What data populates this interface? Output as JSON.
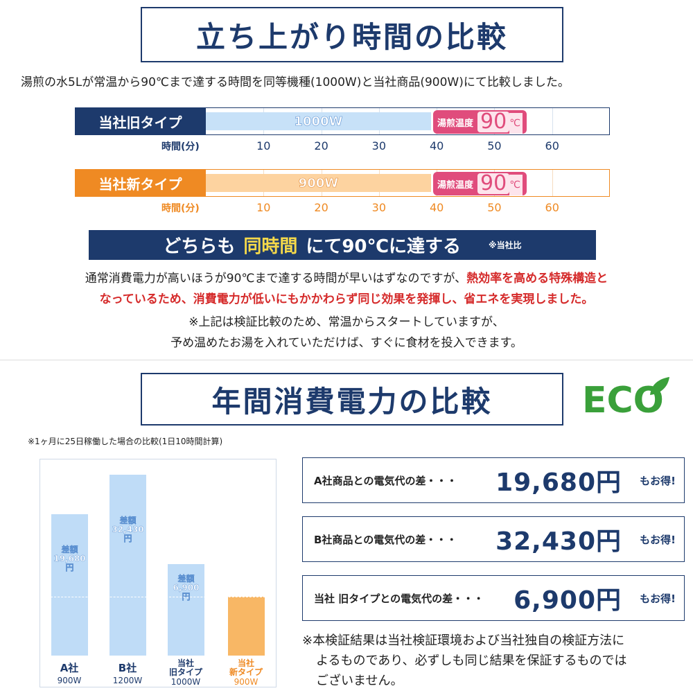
{
  "section1": {
    "title": "立ち上がり時間の比較",
    "description": "湯煎の水5Lが常温から90℃まで達する時間を同等機種(1000W)と当社商品(900W)にて比較しました。",
    "rows": [
      {
        "label": "当社旧タイプ",
        "bar_label": "1000W",
        "badge_label": "湯煎温度",
        "badge_value": "90",
        "badge_unit": "℃",
        "axis_title": "時間(分)",
        "xlim": [
          0,
          70
        ],
        "ticks": [
          10,
          20,
          30,
          40,
          50,
          60
        ],
        "minutes": 39
      },
      {
        "label": "当社新タイプ",
        "bar_label": "900W",
        "badge_label": "湯煎温度",
        "badge_value": "90",
        "badge_unit": "℃",
        "axis_title": "時間(分)",
        "xlim": [
          0,
          70
        ],
        "ticks": [
          10,
          20,
          30,
          40,
          50,
          60
        ],
        "minutes": 39
      }
    ],
    "banner": {
      "pre": "どちらも",
      "highlight": "同時間",
      "post": "にて90℃に達する",
      "note": "※当社比"
    },
    "paragraph": {
      "normal": "通常消費電力が高いほうが90℃まで達する時間が早いはずなのですが、",
      "red_1": "熱効率を高める特殊構造と",
      "red_2": "なっているため、消費電力が低いにもかかわらず同じ効果を発揮し、省エネを実現しました。"
    },
    "notes": [
      "※上記は検証比較のため、常温からスタートしていますが、",
      "予め温めたお湯を入れていただけば、すぐに食材を投入できます。"
    ]
  },
  "section2": {
    "title": "年間消費電力の比較",
    "eco": "ECO",
    "note": "※1ヶ月に25日稼働した場合の比較(1日10時間計算)",
    "bars": [
      {
        "name": [
          "A社"
        ],
        "watt": "900W",
        "diff": [
          "差額",
          "19,680",
          "円"
        ]
      },
      {
        "name": [
          "B社"
        ],
        "watt": "1200W",
        "diff": [
          "差額",
          "32,430",
          "円"
        ]
      },
      {
        "name": [
          "当社",
          "旧タイプ"
        ],
        "watt": "1000W",
        "diff": [
          "差額",
          "6,900",
          "円"
        ]
      },
      {
        "name": [
          "当社",
          "新タイプ"
        ],
        "watt": "900W"
      }
    ],
    "cards": [
      {
        "label": "A社商品との電気代の差・・・",
        "amount": "19,680円",
        "suffix": "もお得!"
      },
      {
        "label": "B社商品との電気代の差・・・",
        "amount": "32,430円",
        "suffix": "もお得!"
      },
      {
        "label": "当社 旧タイプとの電気代の差・・・",
        "amount": "6,900円",
        "suffix": "もお得!"
      }
    ],
    "footnote": [
      "※本検証結果は当社検証環境および当社独自の検証方法に",
      "よるものであり、必ずしも同じ結果を保証するものでは",
      "ございません。"
    ]
  }
}
